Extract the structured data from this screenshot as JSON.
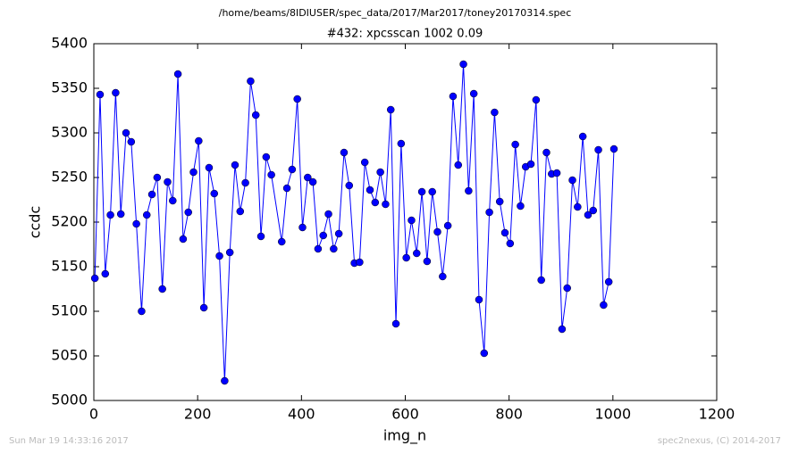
{
  "chart_data": {
    "type": "line",
    "subtitle": "/home/beams/8IDIUSER/spec_data/2017/Mar2017/toney20170314.spec",
    "title": "#432: xpcsscan 1002 0.09",
    "xlabel": "img_n",
    "ylabel": "ccdc",
    "annotations": [
      "Sun Mar 19 14:33:16 2017",
      "spec2nexus, (C) 2014-2017"
    ],
    "color": "#0000ff",
    "marker": "o",
    "x": [
      2,
      12,
      22,
      32,
      42,
      52,
      62,
      72,
      82,
      92,
      102,
      112,
      122,
      132,
      142,
      152,
      162,
      172,
      182,
      192,
      202,
      212,
      222,
      232,
      242,
      252,
      262,
      272,
      282,
      292,
      302,
      312,
      322,
      332,
      342,
      362,
      372,
      382,
      392,
      402,
      412,
      422,
      432,
      442,
      452,
      462,
      472,
      482,
      492,
      502,
      512,
      522,
      532,
      542,
      552,
      562,
      572,
      582,
      592,
      602,
      612,
      622,
      632,
      642,
      652,
      662,
      672,
      682,
      692,
      702,
      712,
      722,
      732,
      742,
      752,
      762,
      772,
      782,
      792,
      802,
      812,
      822,
      832,
      842,
      852,
      862,
      872,
      882,
      892,
      902,
      912,
      922,
      932,
      942,
      952,
      962,
      972,
      982,
      992,
      1002
    ],
    "values": [
      5137,
      5343,
      5142,
      5208,
      5345,
      5209,
      5300,
      5290,
      5198,
      5100,
      5208,
      5231,
      5250,
      5125,
      5245,
      5224,
      5366,
      5181,
      5211,
      5256,
      5291,
      5104,
      5261,
      5232,
      5162,
      5022,
      5166,
      5264,
      5212,
      5244,
      5358,
      5320,
      5184,
      5273,
      5253,
      5178,
      5238,
      5259,
      5338,
      5194,
      5250,
      5245,
      5170,
      5185,
      5209,
      5170,
      5187,
      5278,
      5241,
      5154,
      5155,
      5267,
      5236,
      5222,
      5256,
      5220,
      5326,
      5086,
      5288,
      5160,
      5202,
      5165,
      5234,
      5156,
      5234,
      5189,
      5139,
      5196,
      5341,
      5264,
      5377,
      5235,
      5344,
      5113,
      5053,
      5211,
      5323,
      5223,
      5188,
      5176,
      5287,
      5218,
      5262,
      5265,
      5337,
      5135,
      5278,
      5254,
      5255,
      5080,
      5126,
      5247,
      5217,
      5296,
      5208,
      5213,
      5281,
      5107,
      5133,
      5282
    ],
    "xlim": [
      0,
      1200
    ],
    "xticks": [
      0,
      200,
      400,
      600,
      800,
      1000,
      1200
    ],
    "ylim": [
      5000,
      5400
    ],
    "yticks": [
      5000,
      5050,
      5100,
      5150,
      5200,
      5250,
      5300,
      5350,
      5400
    ],
    "grid": false
  }
}
